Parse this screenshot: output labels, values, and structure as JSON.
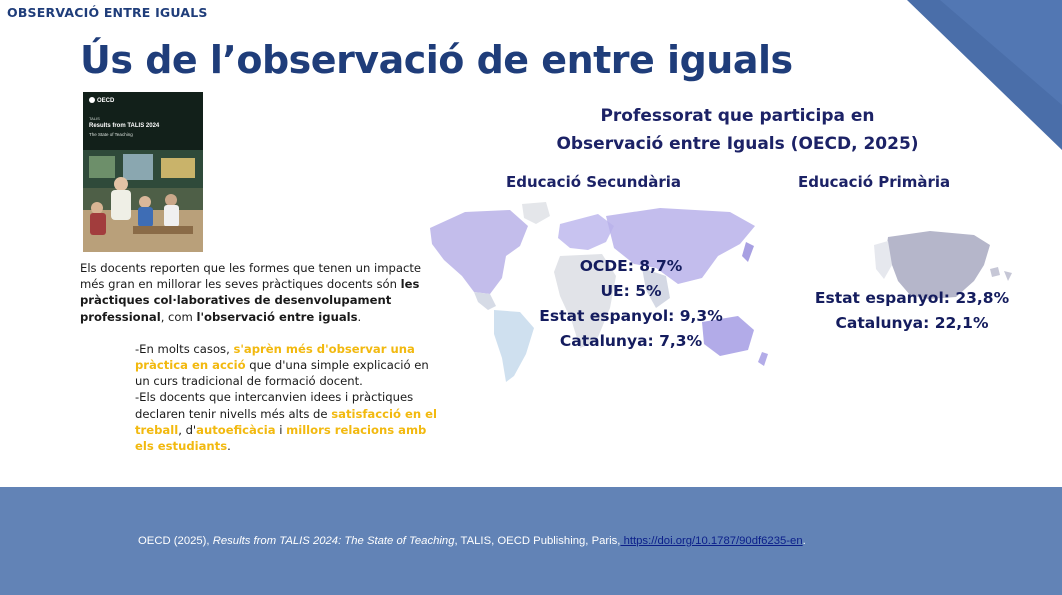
{
  "header": {
    "section_label": "OBSERVACIÓ ENTRE IGUALS",
    "title": "Ús de l’observació de entre iguals"
  },
  "cover": {
    "brand": "OECD",
    "small_label": "TALIS",
    "title": "Results from TALIS 2024",
    "subtitle": "The State of Teaching"
  },
  "body": {
    "p1_a": "Els docents reporten que les formes que tenen un impacte més gran en millorar les seves pràctiques docents són ",
    "p1_b": "les pràctiques col·laboratives de desenvolupament professional",
    "p1_c": ", com ",
    "p1_d": "l'observació entre iguals",
    "p1_e": ".",
    "p2_a": "-En molts casos, ",
    "p2_b": "s'aprèn més d'observar una pràctica en acció",
    "p2_c": " que d'una simple explicació en un curs tradicional de formació docent.",
    "p3_a": "-Els docents que intercanvien idees i pràctiques declaren tenir nivells més alts de ",
    "p3_b": "satisfacció en el treball",
    "p3_c": ", d'",
    "p3_d": "autoeficàcia",
    "p3_e": " i ",
    "p3_f": "millors relacions amb els estudiants",
    "p3_g": "."
  },
  "chart": {
    "title_line1": "Professorat que participa en",
    "title_line2": "Observació entre Iguals (OECD, 2025)",
    "secondary": {
      "heading": "Educació Secundària",
      "stats": [
        "OCDE: 8,7%",
        "UE: 5%",
        "Estat espanyol: 9,3%",
        "Catalunya: 7,3%"
      ]
    },
    "primary": {
      "heading": "Educació Primària",
      "stats": [
        "Estat espanyol: 23,8%",
        "Catalunya: 22,1%"
      ]
    }
  },
  "footer": {
    "citation_a": "OECD (2025), ",
    "citation_italic": "Results from TALIS 2024: The State of Teaching",
    "citation_b": ", TALIS, OECD Publishing, Paris,",
    "citation_link": " https://doi.org/10.1787/90df6235-en",
    "citation_end": "."
  },
  "colors": {
    "navy": "#1f3d7a",
    "highlight": "#f2b90f",
    "footer": "#6283b6",
    "corner": "#4a6ea9"
  }
}
